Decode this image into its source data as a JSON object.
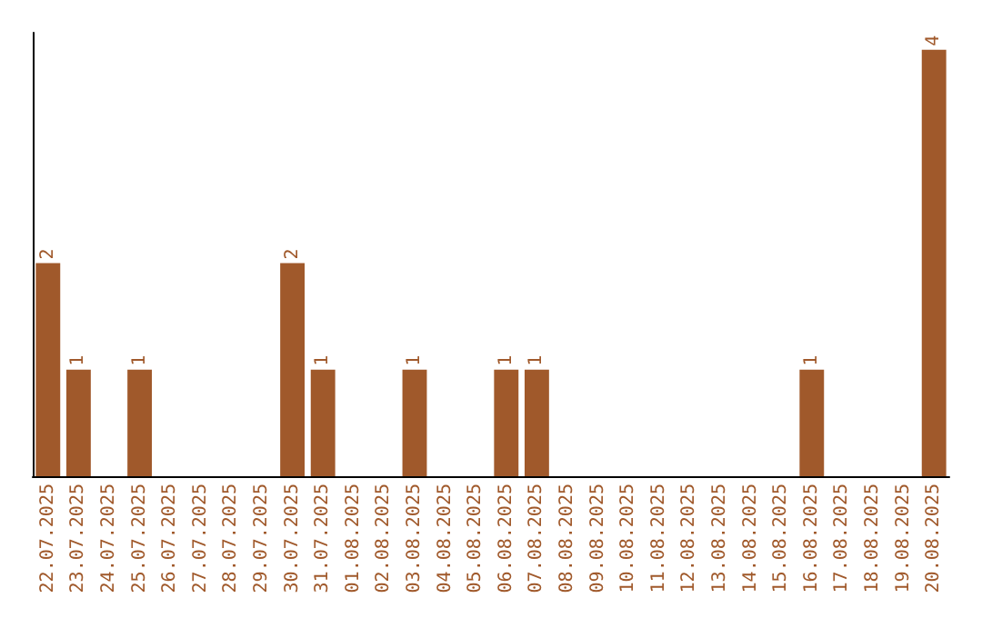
{
  "chart_data": {
    "type": "bar",
    "categories": [
      "22.07.2025",
      "23.07.2025",
      "24.07.2025",
      "25.07.2025",
      "26.07.2025",
      "27.07.2025",
      "28.07.2025",
      "29.07.2025",
      "30.07.2025",
      "31.07.2025",
      "01.08.2025",
      "02.08.2025",
      "03.08.2025",
      "04.08.2025",
      "05.08.2025",
      "06.08.2025",
      "07.08.2025",
      "08.08.2025",
      "09.08.2025",
      "10.08.2025",
      "11.08.2025",
      "12.08.2025",
      "13.08.2025",
      "14.08.2025",
      "15.08.2025",
      "16.08.2025",
      "17.08.2025",
      "18.08.2025",
      "19.08.2025",
      "20.08.2025"
    ],
    "values": [
      2,
      1,
      0,
      1,
      0,
      0,
      0,
      0,
      2,
      1,
      0,
      0,
      1,
      0,
      0,
      1,
      1,
      0,
      0,
      0,
      0,
      0,
      0,
      0,
      0,
      1,
      0,
      0,
      0,
      4
    ],
    "value_labels": [
      "2",
      "1",
      null,
      "1",
      null,
      null,
      null,
      null,
      "2",
      "1",
      null,
      null,
      "1",
      null,
      null,
      "1",
      "1",
      null,
      null,
      null,
      null,
      null,
      null,
      null,
      null,
      "1",
      null,
      null,
      null,
      "4"
    ],
    "color": "#a0592b",
    "tick_labels": "x"
  }
}
